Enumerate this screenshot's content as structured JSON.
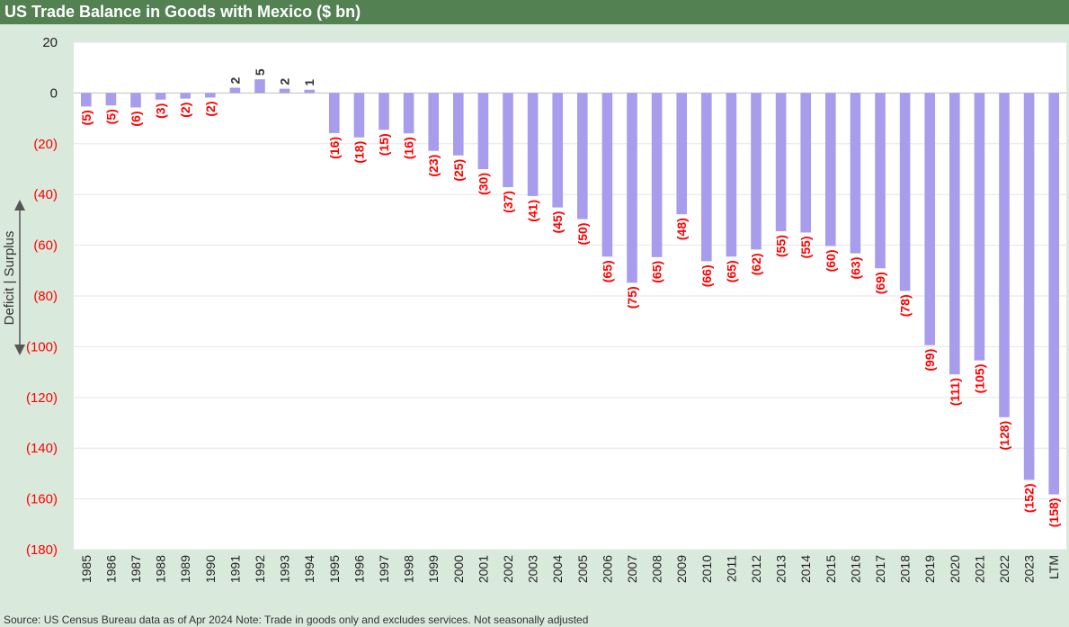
{
  "chart_data": {
    "type": "bar",
    "title": "US Trade Balance in Goods with Mexico ($ bn)",
    "categories": [
      "1985",
      "1986",
      "1987",
      "1988",
      "1989",
      "1990",
      "1991",
      "1992",
      "1993",
      "1994",
      "1995",
      "1996",
      "1997",
      "1998",
      "1999",
      "2000",
      "2001",
      "2002",
      "2003",
      "2004",
      "2005",
      "2006",
      "2007",
      "2008",
      "2009",
      "2010",
      "2011",
      "2012",
      "2013",
      "2014",
      "2015",
      "2016",
      "2017",
      "2018",
      "2019",
      "2020",
      "2021",
      "2022",
      "2023",
      "LTM"
    ],
    "values": [
      -5.3,
      -4.9,
      -5.7,
      -2.6,
      -2.2,
      -1.8,
      2.1,
      5.4,
      1.7,
      1.3,
      -15.8,
      -17.5,
      -14.5,
      -15.9,
      -22.8,
      -24.6,
      -30.0,
      -37.1,
      -40.6,
      -45.1,
      -49.7,
      -64.5,
      -74.8,
      -64.7,
      -47.8,
      -66.3,
      -64.5,
      -61.7,
      -54.5,
      -55.0,
      -60.3,
      -63.2,
      -69.1,
      -78.0,
      -99.4,
      -110.9,
      -105.4,
      -127.8,
      -152.5,
      -158.2
    ],
    "labels": [
      "(5)",
      "(5)",
      "(6)",
      "(3)",
      "(2)",
      "(2)",
      "2",
      "5",
      "2",
      "1",
      "(16)",
      "(18)",
      "(15)",
      "(16)",
      "(23)",
      "(25)",
      "(30)",
      "(37)",
      "(41)",
      "(45)",
      "(50)",
      "(65)",
      "(75)",
      "(65)",
      "(48)",
      "(66)",
      "(65)",
      "(62)",
      "(55)",
      "(55)",
      "(60)",
      "(63)",
      "(69)",
      "(78)",
      "(99)",
      "(111)",
      "(105)",
      "(128)",
      "(152)",
      "(158)"
    ],
    "ylim": [
      -180,
      20
    ],
    "yticks": [
      20,
      0,
      -20,
      -40,
      -60,
      -80,
      -100,
      -120,
      -140,
      -160,
      -180
    ],
    "ytick_labels": [
      "20",
      "0",
      "(20)",
      "(40)",
      "(60)",
      "(80)",
      "(100)",
      "(120)",
      "(140)",
      "(160)",
      "(180)"
    ],
    "xlabel": "",
    "ylabel": "Deficit   |   Surplus",
    "grid": true,
    "colors": {
      "bar": "#a89cec",
      "negative_label": "#ff0000",
      "positive_label": "#333333",
      "tick_negative": "#ff0000",
      "tick_positive": "#222222",
      "title_bar": "#538152",
      "background": "#d9e9dc"
    }
  },
  "source_note": "Source: US Census Bureau data as of Apr 2024 Note: Trade in goods only and excludes services. Not seasonally adjusted"
}
